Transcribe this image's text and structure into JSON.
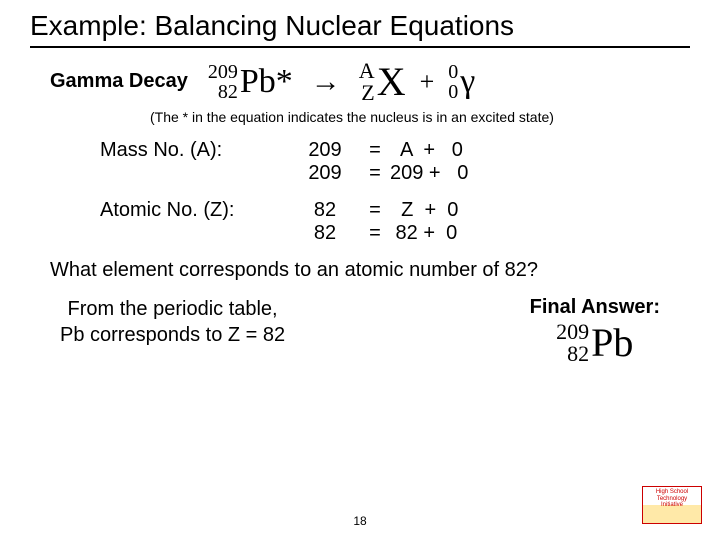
{
  "title": "Example: Balancing Nuclear Equations",
  "decay_label": "Gamma Decay",
  "equation": {
    "lhs": {
      "A": "209",
      "Z": "82",
      "sym": "Pb*"
    },
    "arrow": "→",
    "prod1": {
      "A": "A",
      "Z": "Z",
      "sym": "X"
    },
    "plus": "+",
    "prod2": {
      "A": "0",
      "Z": "0",
      "sym": "γ"
    }
  },
  "note": "(The * in the equation indicates the nucleus is in an excited state)",
  "mass": {
    "label": "Mass No. (A):",
    "row1": {
      "l": "209",
      "r": "  A  +   0"
    },
    "row2": {
      "l": "209",
      "r": "209 +   0"
    }
  },
  "atomic": {
    "label": "Atomic No. (Z):",
    "row1": {
      "l": "82",
      "r": "  Z  +  0"
    },
    "row2": {
      "l": "82",
      "r": " 82 +  0"
    }
  },
  "question": "What element corresponds to an atomic number of 82?",
  "from_pt_line1": "From the periodic table,",
  "from_pt_line2": "Pb corresponds to Z = 82",
  "final_label": "Final Answer:",
  "final_nuclide": {
    "A": "209",
    "Z": "82",
    "sym": "Pb"
  },
  "pagenum": "18",
  "logo_text": "High School Technology Initiative"
}
